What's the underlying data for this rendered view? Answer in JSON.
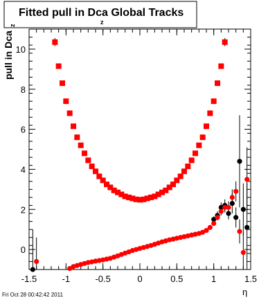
{
  "chart_data": {
    "type": "scatter",
    "title": "Fitted pull in Dca",
    "title_subscript": "z",
    "title_suffix": " Global Tracks",
    "xlabel": "η",
    "ylabel": "pull in Dca",
    "ylabel_subscript": "z",
    "xlim": [
      -1.5,
      1.5
    ],
    "ylim": [
      -1.0,
      11.0
    ],
    "xticks": [
      -1.5,
      -1,
      -0.5,
      0,
      0.5,
      1,
      1.5
    ],
    "xtick_labels": [
      "-1.5",
      "-1",
      "-0.5",
      "0",
      "0.5",
      "1",
      "1.5"
    ],
    "yticks": [
      0,
      2,
      4,
      6,
      8,
      10
    ],
    "ytick_labels": [
      "0",
      "2",
      "4",
      "6",
      "8",
      "10"
    ],
    "grid": false,
    "legend": "none",
    "colors": {
      "square_series": "#ff0000",
      "circle_series_1": "#000000",
      "circle_series_2": "#ff0000",
      "axes": "#000000"
    },
    "series": [
      {
        "marker": "square",
        "color": "#ff0000",
        "x": [
          -1.15,
          -1.1,
          -1.05,
          -1.0,
          -0.95,
          -0.9,
          -0.85,
          -0.8,
          -0.75,
          -0.7,
          -0.65,
          -0.6,
          -0.55,
          -0.5,
          -0.45,
          -0.4,
          -0.35,
          -0.3,
          -0.25,
          -0.2,
          -0.15,
          -0.1,
          -0.05,
          0.0,
          0.05,
          0.1,
          0.15,
          0.2,
          0.25,
          0.3,
          0.35,
          0.4,
          0.45,
          0.5,
          0.55,
          0.6,
          0.65,
          0.7,
          0.75,
          0.8,
          0.85,
          0.9,
          0.95,
          1.0,
          1.05,
          1.1,
          1.15
        ],
        "y": [
          10.35,
          9.15,
          8.3,
          7.4,
          6.8,
          6.15,
          5.6,
          5.2,
          4.8,
          4.45,
          4.15,
          3.9,
          3.65,
          3.45,
          3.25,
          3.1,
          2.95,
          2.85,
          2.75,
          2.65,
          2.6,
          2.55,
          2.5,
          2.48,
          2.5,
          2.55,
          2.6,
          2.65,
          2.75,
          2.85,
          2.95,
          3.1,
          3.25,
          3.45,
          3.65,
          3.9,
          4.15,
          4.45,
          4.8,
          5.2,
          5.6,
          6.15,
          6.8,
          7.4,
          8.3,
          9.15,
          10.35
        ],
        "yerr": [
          0.2,
          0.12,
          0.1,
          0.08,
          0.06,
          0.05,
          0.04,
          0.04,
          0.03,
          0.03,
          0.03,
          0.02,
          0.02,
          0.02,
          0.02,
          0.02,
          0.02,
          0.02,
          0.02,
          0.02,
          0.02,
          0.02,
          0.02,
          0.02,
          0.02,
          0.02,
          0.02,
          0.02,
          0.02,
          0.02,
          0.02,
          0.02,
          0.02,
          0.02,
          0.02,
          0.02,
          0.03,
          0.03,
          0.03,
          0.04,
          0.04,
          0.05,
          0.06,
          0.08,
          0.1,
          0.12,
          0.2
        ]
      },
      {
        "marker": "circle",
        "color": "#000000",
        "x": [
          -1.45,
          1.0,
          1.05,
          1.1,
          1.15,
          1.2,
          1.25,
          1.3,
          1.35,
          1.4,
          1.45
        ],
        "y": [
          -1.0,
          1.5,
          1.7,
          2.1,
          2.2,
          1.8,
          2.3,
          1.6,
          4.4,
          2.0,
          1.1
        ],
        "yerr": [
          2.0,
          0.15,
          0.2,
          0.25,
          0.3,
          0.3,
          0.5,
          0.5,
          2.3,
          1.3,
          2.2
        ]
      },
      {
        "marker": "circle",
        "color": "#ff0000",
        "x": [
          -1.4,
          -0.95,
          -0.9,
          -0.85,
          -0.8,
          -0.75,
          -0.7,
          -0.65,
          -0.6,
          -0.55,
          -0.5,
          -0.45,
          -0.4,
          -0.35,
          -0.3,
          -0.25,
          -0.2,
          -0.15,
          -0.1,
          -0.05,
          0.0,
          0.05,
          0.1,
          0.15,
          0.2,
          0.25,
          0.3,
          0.35,
          0.4,
          0.45,
          0.5,
          0.55,
          0.6,
          0.65,
          0.7,
          0.75,
          0.8,
          0.85,
          0.9,
          0.95,
          1.0,
          1.05,
          1.1,
          1.15,
          1.2,
          1.25,
          1.3,
          1.35,
          1.4,
          1.45
        ],
        "y": [
          -0.6,
          -0.95,
          -0.85,
          -0.8,
          -0.75,
          -0.7,
          -0.65,
          -0.62,
          -0.58,
          -0.55,
          -0.52,
          -0.48,
          -0.44,
          -0.38,
          -0.32,
          -0.25,
          -0.18,
          -0.12,
          -0.05,
          0.0,
          0.05,
          0.1,
          0.15,
          0.2,
          0.26,
          0.32,
          0.38,
          0.43,
          0.48,
          0.52,
          0.56,
          0.6,
          0.64,
          0.68,
          0.72,
          0.76,
          0.8,
          0.86,
          0.95,
          1.1,
          1.3,
          1.6,
          1.9,
          2.1,
          2.1,
          2.6,
          2.9,
          0.9,
          -0.15,
          3.5
        ],
        "yerr": [
          1.2,
          0.1,
          0.06,
          0.05,
          0.04,
          0.04,
          0.03,
          0.03,
          0.03,
          0.03,
          0.02,
          0.02,
          0.02,
          0.02,
          0.02,
          0.02,
          0.02,
          0.02,
          0.02,
          0.02,
          0.02,
          0.02,
          0.02,
          0.02,
          0.02,
          0.02,
          0.02,
          0.02,
          0.02,
          0.02,
          0.02,
          0.02,
          0.02,
          0.03,
          0.03,
          0.03,
          0.04,
          0.05,
          0.06,
          0.08,
          0.1,
          0.15,
          0.2,
          0.25,
          0.3,
          0.4,
          0.5,
          0.6,
          1.0,
          1.6
        ]
      }
    ]
  },
  "footer": {
    "timestamp": "Fri Oct 28 00:42:42 2011"
  }
}
